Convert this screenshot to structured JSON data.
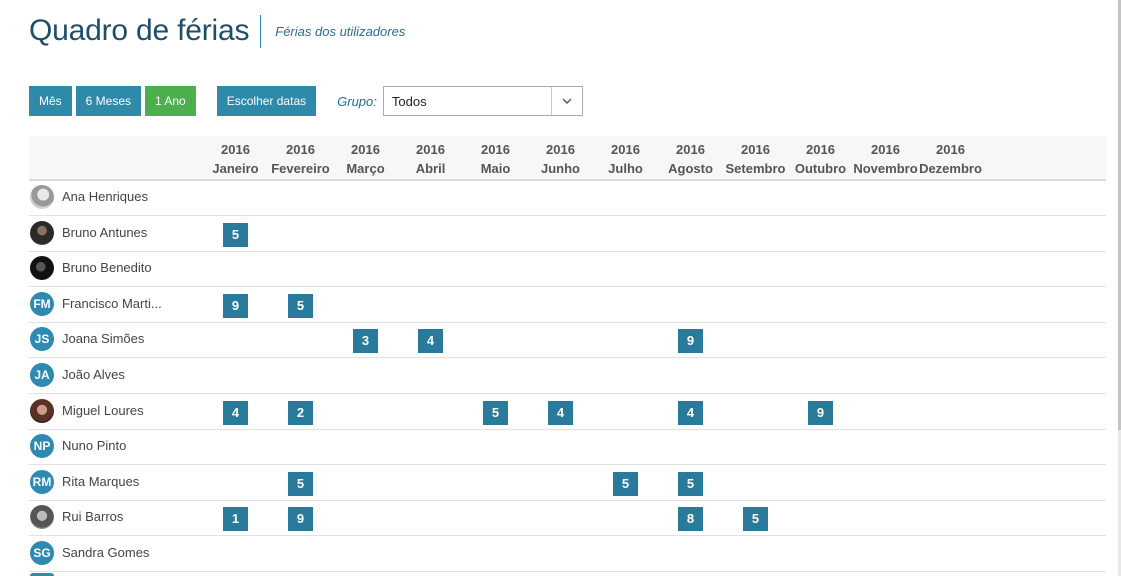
{
  "header": {
    "title": "Quadro de férias",
    "subtitle": "Férias dos utilizadores"
  },
  "toolbar": {
    "buttons": [
      {
        "label": "Mês",
        "active": false
      },
      {
        "label": "6 Meses",
        "active": false
      },
      {
        "label": "1 Ano",
        "active": true
      }
    ],
    "choose_dates": "Escolher datas",
    "group_label": "Grupo:",
    "group_value": "Todos"
  },
  "colors": {
    "primary": "#2f89a9",
    "active": "#4cae4c",
    "count_badge": "#2a7b9b",
    "title": "#1f4e67"
  },
  "months": [
    {
      "year": "2016",
      "name": "Janeiro"
    },
    {
      "year": "2016",
      "name": "Fevereiro"
    },
    {
      "year": "2016",
      "name": "Março"
    },
    {
      "year": "2016",
      "name": "Abril"
    },
    {
      "year": "2016",
      "name": "Maio"
    },
    {
      "year": "2016",
      "name": "Junho"
    },
    {
      "year": "2016",
      "name": "Julho"
    },
    {
      "year": "2016",
      "name": "Agosto"
    },
    {
      "year": "2016",
      "name": "Setembro"
    },
    {
      "year": "2016",
      "name": "Outubro"
    },
    {
      "year": "2016",
      "name": "Novembro"
    },
    {
      "year": "2016",
      "name": "Dezembro"
    }
  ],
  "users": [
    {
      "name": "Ana Henriques",
      "avatar": {
        "type": "photo",
        "variant": "photo1"
      },
      "days": [
        null,
        null,
        null,
        null,
        null,
        null,
        null,
        null,
        null,
        null,
        null,
        null
      ]
    },
    {
      "name": "Bruno Antunes",
      "avatar": {
        "type": "photo",
        "variant": "photo2"
      },
      "days": [
        "5",
        null,
        null,
        null,
        null,
        null,
        null,
        null,
        null,
        null,
        null,
        null
      ]
    },
    {
      "name": "Bruno Benedito",
      "avatar": {
        "type": "photo",
        "variant": "photo3"
      },
      "days": [
        null,
        null,
        null,
        null,
        null,
        null,
        null,
        null,
        null,
        null,
        null,
        null
      ]
    },
    {
      "name": "Francisco Marti...",
      "avatar": {
        "type": "initials",
        "text": "FM"
      },
      "days": [
        "9",
        "5",
        null,
        null,
        null,
        null,
        null,
        null,
        null,
        null,
        null,
        null
      ]
    },
    {
      "name": "Joana Simões",
      "avatar": {
        "type": "initials",
        "text": "JS"
      },
      "days": [
        null,
        null,
        "3",
        "4",
        null,
        null,
        null,
        "9",
        null,
        null,
        null,
        null
      ]
    },
    {
      "name": "João Alves",
      "avatar": {
        "type": "initials",
        "text": "JA"
      },
      "days": [
        null,
        null,
        null,
        null,
        null,
        null,
        null,
        null,
        null,
        null,
        null,
        null
      ]
    },
    {
      "name": "Miguel Loures",
      "avatar": {
        "type": "photo",
        "variant": "photo4"
      },
      "days": [
        "4",
        "2",
        null,
        null,
        "5",
        "4",
        null,
        "4",
        null,
        "9",
        null,
        null
      ]
    },
    {
      "name": "Nuno Pinto",
      "avatar": {
        "type": "initials",
        "text": "NP"
      },
      "days": [
        null,
        null,
        null,
        null,
        null,
        null,
        null,
        null,
        null,
        null,
        null,
        null
      ]
    },
    {
      "name": "Rita Marques",
      "avatar": {
        "type": "initials",
        "text": "RM"
      },
      "days": [
        null,
        "5",
        null,
        null,
        null,
        null,
        "5",
        "5",
        null,
        null,
        null,
        null
      ]
    },
    {
      "name": "Rui Barros",
      "avatar": {
        "type": "photo",
        "variant": "photo5"
      },
      "days": [
        "1",
        "9",
        null,
        null,
        null,
        null,
        null,
        "8",
        "5",
        null,
        null,
        null
      ]
    },
    {
      "name": "Sandra Gomes",
      "avatar": {
        "type": "initials",
        "text": "SG"
      },
      "days": [
        null,
        null,
        null,
        null,
        null,
        null,
        null,
        null,
        null,
        null,
        null,
        null
      ]
    }
  ]
}
